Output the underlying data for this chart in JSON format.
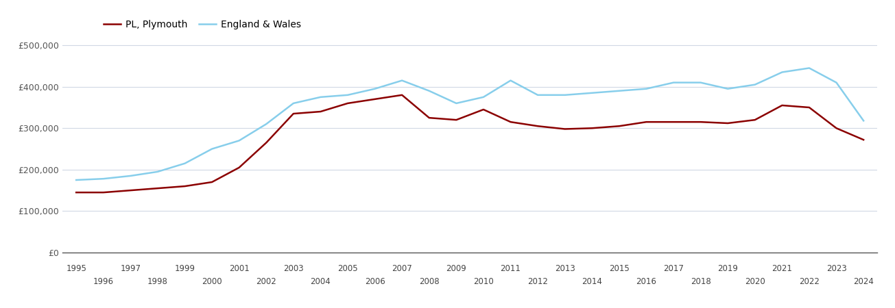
{
  "years": [
    1995,
    1996,
    1997,
    1998,
    1999,
    2000,
    2001,
    2002,
    2003,
    2004,
    2005,
    2006,
    2007,
    2008,
    2009,
    2010,
    2011,
    2012,
    2013,
    2014,
    2015,
    2016,
    2017,
    2018,
    2019,
    2020,
    2021,
    2022,
    2023,
    2024
  ],
  "plymouth": [
    145000,
    145000,
    150000,
    155000,
    160000,
    170000,
    205000,
    265000,
    335000,
    340000,
    360000,
    370000,
    380000,
    325000,
    320000,
    345000,
    315000,
    305000,
    298000,
    300000,
    305000,
    315000,
    315000,
    315000,
    312000,
    320000,
    355000,
    350000,
    300000,
    272000
  ],
  "england_wales": [
    175000,
    178000,
    185000,
    195000,
    215000,
    250000,
    270000,
    310000,
    360000,
    375000,
    380000,
    395000,
    415000,
    390000,
    360000,
    375000,
    415000,
    380000,
    380000,
    385000,
    390000,
    395000,
    410000,
    410000,
    395000,
    405000,
    435000,
    445000,
    410000,
    318000
  ],
  "plymouth_color": "#8B0000",
  "england_wales_color": "#87CEEB",
  "background_color": "#ffffff",
  "grid_color": "#d0d8e4",
  "ylim": [
    0,
    520000
  ],
  "yticks": [
    0,
    100000,
    200000,
    300000,
    400000,
    500000
  ],
  "ytick_labels": [
    "£0",
    "£100,000",
    "£200,000",
    "£300,000",
    "£400,000",
    "£500,000"
  ],
  "legend_pl": "PL, Plymouth",
  "legend_ew": "England & Wales",
  "line_width": 1.8,
  "odd_years": [
    1995,
    1997,
    1999,
    2001,
    2003,
    2005,
    2007,
    2009,
    2011,
    2013,
    2015,
    2017,
    2019,
    2021,
    2023
  ],
  "even_years": [
    1996,
    1998,
    2000,
    2002,
    2004,
    2006,
    2008,
    2010,
    2012,
    2014,
    2016,
    2018,
    2020,
    2022,
    2024
  ]
}
